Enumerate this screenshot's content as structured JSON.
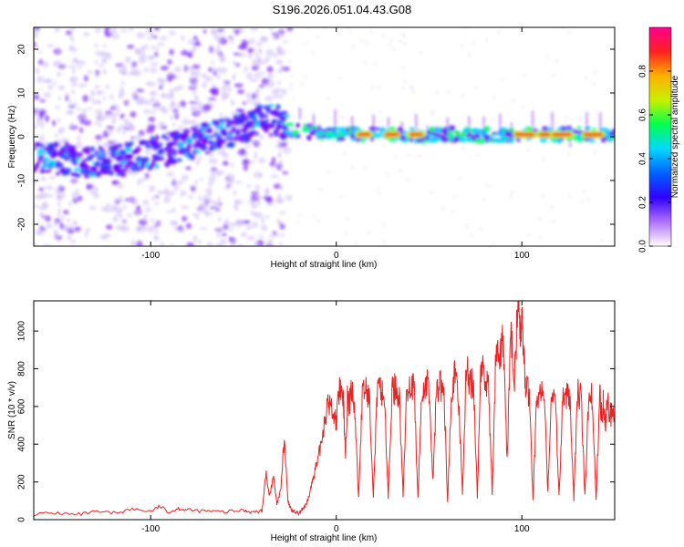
{
  "title": "S196.2026.051.04.43.G08",
  "colors": {
    "snr_line": "#ee2222",
    "spectrum_core": "#00d0ff",
    "spectrum_mid": "#6a00ff",
    "spectrum_faint": "#c8b0f5",
    "spectrum_hot": "#ff3030",
    "spectrum_yellow": "#c8f000"
  },
  "chart_data": [
    {
      "type": "heatmap",
      "title": "S196.2026.051.04.43.G08",
      "xlabel": "Height of straight line (km)",
      "ylabel": "Frequency (Hz)",
      "xlim": [
        -163,
        150
      ],
      "ylim": [
        -25,
        25
      ],
      "xticks": [
        {
          "value": -100,
          "label": "-100"
        },
        {
          "value": 0,
          "label": "0"
        },
        {
          "value": 100,
          "label": "100"
        }
      ],
      "yticks": [
        {
          "value": -20,
          "label": "-20"
        },
        {
          "value": -10,
          "label": "-10"
        },
        {
          "value": 0,
          "label": "0"
        },
        {
          "value": 10,
          "label": "10"
        },
        {
          "value": 20,
          "label": "20"
        }
      ],
      "colorbar": {
        "label": "Normalized spectral amplitude",
        "range": [
          0,
          1
        ],
        "ticks": [
          {
            "value": 0.0,
            "label": "0.0"
          },
          {
            "value": 0.2,
            "label": "0.2"
          },
          {
            "value": 0.4,
            "label": "0.4"
          },
          {
            "value": 0.6,
            "label": "0.6"
          },
          {
            "value": 0.8,
            "label": "0.8"
          }
        ],
        "colormap": [
          "#ffffff",
          "#b070ff",
          "#3000ff",
          "#0060ff",
          "#00d8ff",
          "#00ff50",
          "#c8f000",
          "#ffb000",
          "#ff2020",
          "#ff0090"
        ]
      },
      "ridge": {
        "description_points": [
          [
            -150,
            -5
          ],
          [
            -125,
            -6
          ],
          [
            -100,
            -4
          ],
          [
            -75,
            -1
          ],
          [
            -50,
            2
          ],
          [
            -35,
            5
          ],
          [
            -27,
            1.5
          ],
          [
            0,
            0.5
          ],
          [
            150,
            0.5
          ]
        ],
        "hot_segments_x": [
          [
            10,
            20
          ],
          [
            25,
            35
          ],
          [
            38,
            48
          ],
          [
            95,
            108
          ],
          [
            108,
            118
          ],
          [
            115,
            128
          ],
          [
            132,
            145
          ]
        ]
      }
    },
    {
      "type": "line",
      "xlabel": "Height of straight line (km)",
      "ylabel": "SNR (10 * v/v)",
      "xlim": [
        -163,
        150
      ],
      "ylim": [
        0,
        1160
      ],
      "xticks": [
        {
          "value": -100,
          "label": "-100"
        },
        {
          "value": 0,
          "label": "0"
        },
        {
          "value": 100,
          "label": "100"
        }
      ],
      "yticks": [
        {
          "value": 0,
          "label": "0"
        },
        {
          "value": 200,
          "label": "200"
        },
        {
          "value": 400,
          "label": "400"
        },
        {
          "value": 600,
          "label": "600"
        },
        {
          "value": 800,
          "label": "800"
        },
        {
          "value": 1000,
          "label": "1000"
        }
      ],
      "series": [
        {
          "name": "SNR",
          "x": [
            -163,
            -150,
            -140,
            -130,
            -120,
            -110,
            -100,
            -95,
            -90,
            -85,
            -80,
            -70,
            -60,
            -50,
            -45,
            -40,
            -38,
            -36,
            -34,
            -32,
            -30,
            -28,
            -26,
            -24,
            -22,
            -20,
            -18,
            -16,
            -14,
            -12,
            -10,
            -8,
            -6,
            -4,
            -2,
            0,
            2,
            4,
            5,
            6,
            7,
            8,
            10,
            12,
            14,
            16,
            18,
            20,
            22,
            24,
            26,
            28,
            30,
            32,
            34,
            36,
            38,
            40,
            42,
            44,
            46,
            48,
            50,
            52,
            54,
            56,
            58,
            60,
            62,
            64,
            66,
            68,
            70,
            72,
            74,
            76,
            78,
            80,
            82,
            84,
            86,
            88,
            90,
            92,
            94,
            96,
            98,
            99,
            100,
            101,
            102,
            104,
            106,
            108,
            110,
            112,
            114,
            116,
            118,
            120,
            122,
            124,
            126,
            128,
            130,
            132,
            134,
            136,
            138,
            140,
            142,
            143,
            144,
            145,
            146,
            148,
            150
          ],
          "values": [
            30,
            35,
            25,
            40,
            35,
            55,
            45,
            70,
            40,
            60,
            50,
            45,
            40,
            50,
            40,
            45,
            250,
            120,
            230,
            80,
            150,
            420,
            90,
            50,
            40,
            30,
            60,
            80,
            150,
            250,
            300,
            420,
            550,
            620,
            580,
            520,
            700,
            600,
            350,
            650,
            600,
            700,
            580,
            120,
            650,
            700,
            620,
            130,
            660,
            700,
            640,
            110,
            680,
            700,
            650,
            120,
            700,
            720,
            680,
            110,
            650,
            720,
            700,
            200,
            680,
            720,
            650,
            100,
            700,
            760,
            620,
            150,
            800,
            740,
            700,
            120,
            820,
            760,
            700,
            130,
            880,
            820,
            960,
            300,
            1000,
            760,
            1160,
            980,
            1100,
            850,
            720,
            650,
            110,
            640,
            680,
            650,
            140,
            700,
            640,
            120,
            640,
            660,
            650,
            110,
            680,
            640,
            120,
            660,
            640,
            110,
            660,
            550,
            650,
            500,
            620,
            560,
            540
          ]
        }
      ]
    }
  ]
}
